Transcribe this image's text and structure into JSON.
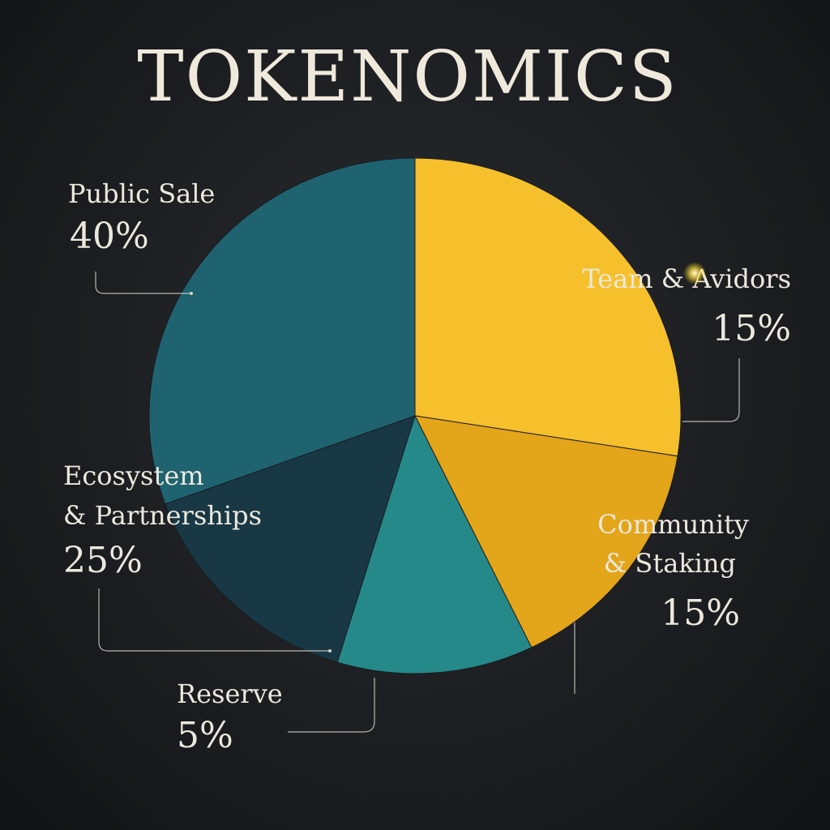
{
  "chart_data": {
    "type": "pie",
    "title": "TOKENOMICS",
    "slices": [
      {
        "label": "Team & Avidors",
        "value": 15,
        "value_label": "15%",
        "color": "#f5c02b"
      },
      {
        "label": "Community & Staking",
        "value": 15,
        "value_label": "15%",
        "color": "#e3a519"
      },
      {
        "label": "Reserve",
        "value": 5,
        "value_label": "5%",
        "color": "#25898a"
      },
      {
        "label": "Ecosystem & Partnerships",
        "value": 25,
        "value_label": "25%",
        "color": "#183845"
      },
      {
        "label": "Public Sale",
        "value": 40,
        "value_label": "40%",
        "color": "#1f6370"
      }
    ],
    "label_lines": {
      "public_sale": [
        "Public Sale"
      ],
      "team": [
        "Team & Avidors"
      ],
      "ecosystem": [
        "Ecosystem",
        "& Partnerships"
      ],
      "community": [
        "Community",
        "& Staking"
      ],
      "reserve": [
        "Reserve"
      ]
    }
  }
}
